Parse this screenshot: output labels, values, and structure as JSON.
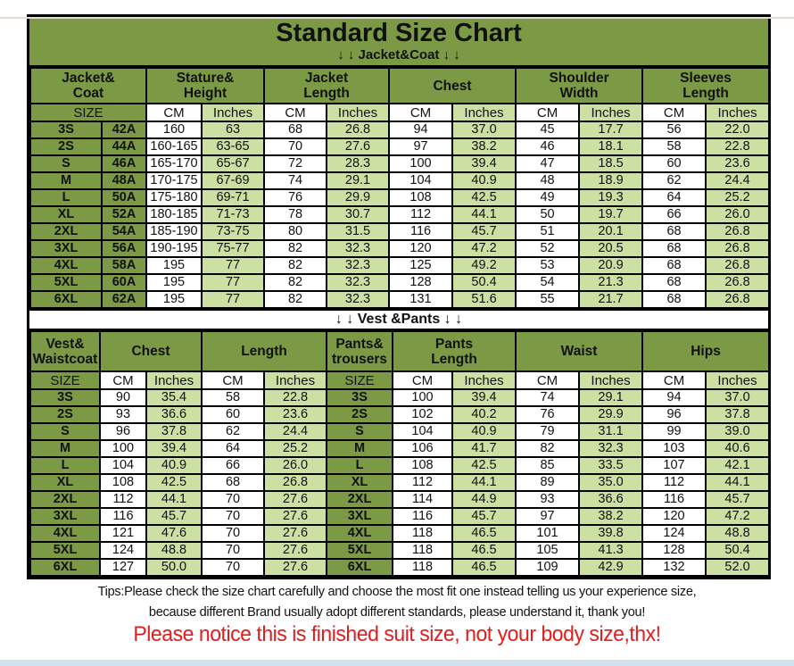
{
  "title": "Standard Size Chart",
  "jacket_section_label": "↓ ↓  Jacket&Coat ↓ ↓",
  "vest_section_label": "↓ ↓  Vest &Pants ↓ ↓",
  "tips": {
    "line1": "Tips:Please check the size chart carefully and choose the most fit one instead telling us your experience size,",
    "line2": "because different Brand usually adopt different standards, please understand it, thank you!"
  },
  "notice": "Please notice this is finished suit size, not your body size,thx!",
  "colors": {
    "header_green": "#7c9a45",
    "light_green": "#cde0a4",
    "notice_red": "#e11d1d",
    "border": "#000000"
  },
  "jacket_table": {
    "groups": [
      {
        "lines": [
          "Jacket&",
          "Coat"
        ],
        "span": 2
      },
      {
        "lines": [
          "Stature&",
          "Height"
        ],
        "span": 2
      },
      {
        "lines": [
          "Jacket",
          "Length"
        ],
        "span": 2
      },
      {
        "lines": [
          "Chest"
        ],
        "span": 2
      },
      {
        "lines": [
          "Shoulder",
          "Width"
        ],
        "span": 2
      },
      {
        "lines": [
          "Sleeves",
          "Length"
        ],
        "span": 2
      }
    ],
    "subheader": [
      {
        "label": "SIZE",
        "span": 2
      },
      {
        "label": "CM",
        "span": 1
      },
      {
        "label": "Inches",
        "span": 1
      },
      {
        "label": "CM",
        "span": 1
      },
      {
        "label": "Inches",
        "span": 1
      },
      {
        "label": "CM",
        "span": 1
      },
      {
        "label": "Inches",
        "span": 1
      },
      {
        "label": "CM",
        "span": 1
      },
      {
        "label": "Inches",
        "span": 1
      },
      {
        "label": "CM",
        "span": 1
      },
      {
        "label": "Inches",
        "span": 1
      }
    ],
    "rows": [
      [
        "3S",
        "42A",
        "160",
        "63",
        "68",
        "26.8",
        "94",
        "37.0",
        "45",
        "17.7",
        "56",
        "22.0"
      ],
      [
        "2S",
        "44A",
        "160-165",
        "63-65",
        "70",
        "27.6",
        "97",
        "38.2",
        "46",
        "18.1",
        "58",
        "22.8"
      ],
      [
        "S",
        "46A",
        "165-170",
        "65-67",
        "72",
        "28.3",
        "100",
        "39.4",
        "47",
        "18.5",
        "60",
        "23.6"
      ],
      [
        "M",
        "48A",
        "170-175",
        "67-69",
        "74",
        "29.1",
        "104",
        "40.9",
        "48",
        "18.9",
        "62",
        "24.4"
      ],
      [
        "L",
        "50A",
        "175-180",
        "69-71",
        "76",
        "29.9",
        "108",
        "42.5",
        "49",
        "19.3",
        "64",
        "25.2"
      ],
      [
        "XL",
        "52A",
        "180-185",
        "71-73",
        "78",
        "30.7",
        "112",
        "44.1",
        "50",
        "19.7",
        "66",
        "26.0"
      ],
      [
        "2XL",
        "54A",
        "185-190",
        "73-75",
        "80",
        "31.5",
        "116",
        "45.7",
        "51",
        "20.1",
        "68",
        "26.8"
      ],
      [
        "3XL",
        "56A",
        "190-195",
        "75-77",
        "82",
        "32.3",
        "120",
        "47.2",
        "52",
        "20.5",
        "68",
        "26.8"
      ],
      [
        "4XL",
        "58A",
        "195",
        "77",
        "82",
        "32.3",
        "125",
        "49.2",
        "53",
        "20.9",
        "68",
        "26.8"
      ],
      [
        "5XL",
        "60A",
        "195",
        "77",
        "82",
        "32.3",
        "128",
        "50.4",
        "54",
        "21.3",
        "68",
        "26.8"
      ],
      [
        "6XL",
        "62A",
        "195",
        "77",
        "82",
        "32.3",
        "131",
        "51.6",
        "55",
        "21.7",
        "68",
        "26.8"
      ]
    ]
  },
  "vest_table": {
    "groups": [
      {
        "lines": [
          "Vest&",
          "Waistcoat"
        ],
        "span": 1
      },
      {
        "lines": [
          "Chest"
        ],
        "span": 2
      },
      {
        "lines": [
          "Length"
        ],
        "span": 2
      },
      {
        "lines": [
          "Pants&",
          "trousers"
        ],
        "span": 1
      },
      {
        "lines": [
          "Pants",
          "Length"
        ],
        "span": 2
      },
      {
        "lines": [
          "Waist"
        ],
        "span": 2
      },
      {
        "lines": [
          "Hips"
        ],
        "span": 2
      }
    ],
    "subheader": [
      {
        "label": "SIZE",
        "span": 1
      },
      {
        "label": "CM",
        "span": 1
      },
      {
        "label": "Inches",
        "span": 1
      },
      {
        "label": "CM",
        "span": 1
      },
      {
        "label": "Inches",
        "span": 1
      },
      {
        "label": "SIZE",
        "span": 1
      },
      {
        "label": "CM",
        "span": 1
      },
      {
        "label": "Inches",
        "span": 1
      },
      {
        "label": "CM",
        "span": 1
      },
      {
        "label": "Inches",
        "span": 1
      },
      {
        "label": "CM",
        "span": 1
      },
      {
        "label": "Inches",
        "span": 1
      }
    ],
    "rows": [
      [
        "3S",
        "90",
        "35.4",
        "58",
        "22.8",
        "3S",
        "100",
        "39.4",
        "74",
        "29.1",
        "94",
        "37.0"
      ],
      [
        "2S",
        "93",
        "36.6",
        "60",
        "23.6",
        "2S",
        "102",
        "40.2",
        "76",
        "29.9",
        "96",
        "37.8"
      ],
      [
        "S",
        "96",
        "37.8",
        "62",
        "24.4",
        "S",
        "104",
        "40.9",
        "79",
        "31.1",
        "99",
        "39.0"
      ],
      [
        "M",
        "100",
        "39.4",
        "64",
        "25.2",
        "M",
        "106",
        "41.7",
        "82",
        "32.3",
        "103",
        "40.6"
      ],
      [
        "L",
        "104",
        "40.9",
        "66",
        "26.0",
        "L",
        "108",
        "42.5",
        "85",
        "33.5",
        "107",
        "42.1"
      ],
      [
        "XL",
        "108",
        "42.5",
        "68",
        "26.8",
        "XL",
        "112",
        "44.1",
        "89",
        "35.0",
        "112",
        "44.1"
      ],
      [
        "2XL",
        "112",
        "44.1",
        "70",
        "27.6",
        "2XL",
        "114",
        "44.9",
        "93",
        "36.6",
        "116",
        "45.7"
      ],
      [
        "3XL",
        "116",
        "45.7",
        "70",
        "27.6",
        "3XL",
        "116",
        "45.7",
        "97",
        "38.2",
        "120",
        "47.2"
      ],
      [
        "4XL",
        "121",
        "47.6",
        "70",
        "27.6",
        "4XL",
        "118",
        "46.5",
        "101",
        "39.8",
        "124",
        "48.8"
      ],
      [
        "5XL",
        "124",
        "48.8",
        "70",
        "27.6",
        "5XL",
        "118",
        "46.5",
        "105",
        "41.3",
        "128",
        "50.4"
      ],
      [
        "6XL",
        "127",
        "50.0",
        "70",
        "27.6",
        "6XL",
        "118",
        "46.5",
        "109",
        "42.9",
        "132",
        "52.0"
      ]
    ]
  }
}
